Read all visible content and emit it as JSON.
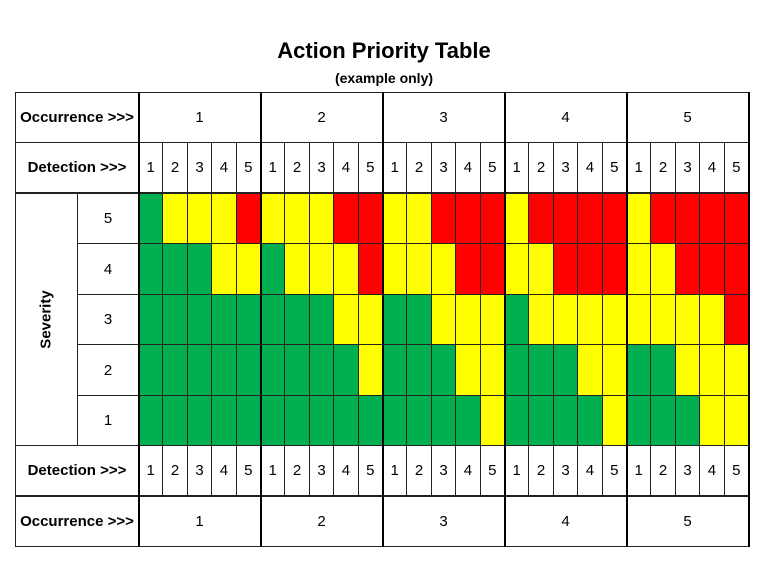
{
  "header": {
    "title": "Action Priority Table",
    "subtitle": "(example only)"
  },
  "table": {
    "occurrence_label": "Occurrence >>>",
    "detection_label": "Detection >>>",
    "severity_label": "Severity",
    "occurrence_values": [
      1,
      2,
      3,
      4,
      5
    ],
    "detection_values": [
      1,
      2,
      3,
      4,
      5
    ],
    "severity_levels": [
      5,
      4,
      3,
      2,
      1
    ],
    "cell_colors": [
      [
        "#00b050",
        "#ffff00",
        "#ffff00",
        "#ffff00",
        "#ff0000",
        "#ffff00",
        "#ffff00",
        "#ffff00",
        "#ff0000",
        "#ff0000",
        "#ffff00",
        "#ffff00",
        "#ff0000",
        "#ff0000",
        "#ff0000",
        "#ffff00",
        "#ff0000",
        "#ff0000",
        "#ff0000",
        "#ff0000",
        "#ffff00",
        "#ff0000",
        "#ff0000",
        "#ff0000",
        "#ff0000"
      ],
      [
        "#00b050",
        "#00b050",
        "#00b050",
        "#ffff00",
        "#ffff00",
        "#00b050",
        "#ffff00",
        "#ffff00",
        "#ffff00",
        "#ff0000",
        "#ffff00",
        "#ffff00",
        "#ffff00",
        "#ff0000",
        "#ff0000",
        "#ffff00",
        "#ffff00",
        "#ff0000",
        "#ff0000",
        "#ff0000",
        "#ffff00",
        "#ffff00",
        "#ff0000",
        "#ff0000",
        "#ff0000"
      ],
      [
        "#00b050",
        "#00b050",
        "#00b050",
        "#00b050",
        "#00b050",
        "#00b050",
        "#00b050",
        "#00b050",
        "#ffff00",
        "#ffff00",
        "#00b050",
        "#00b050",
        "#ffff00",
        "#ffff00",
        "#ffff00",
        "#00b050",
        "#ffff00",
        "#ffff00",
        "#ffff00",
        "#ffff00",
        "#ffff00",
        "#ffff00",
        "#ffff00",
        "#ffff00",
        "#ff0000"
      ],
      [
        "#00b050",
        "#00b050",
        "#00b050",
        "#00b050",
        "#00b050",
        "#00b050",
        "#00b050",
        "#00b050",
        "#00b050",
        "#ffff00",
        "#00b050",
        "#00b050",
        "#00b050",
        "#ffff00",
        "#ffff00",
        "#00b050",
        "#00b050",
        "#00b050",
        "#ffff00",
        "#ffff00",
        "#00b050",
        "#00b050",
        "#ffff00",
        "#ffff00",
        "#ffff00"
      ],
      [
        "#00b050",
        "#00b050",
        "#00b050",
        "#00b050",
        "#00b050",
        "#00b050",
        "#00b050",
        "#00b050",
        "#00b050",
        "#00b050",
        "#00b050",
        "#00b050",
        "#00b050",
        "#00b050",
        "#ffff00",
        "#00b050",
        "#00b050",
        "#00b050",
        "#00b050",
        "#ffff00",
        "#00b050",
        "#00b050",
        "#00b050",
        "#ffff00",
        "#ffff00"
      ]
    ]
  }
}
